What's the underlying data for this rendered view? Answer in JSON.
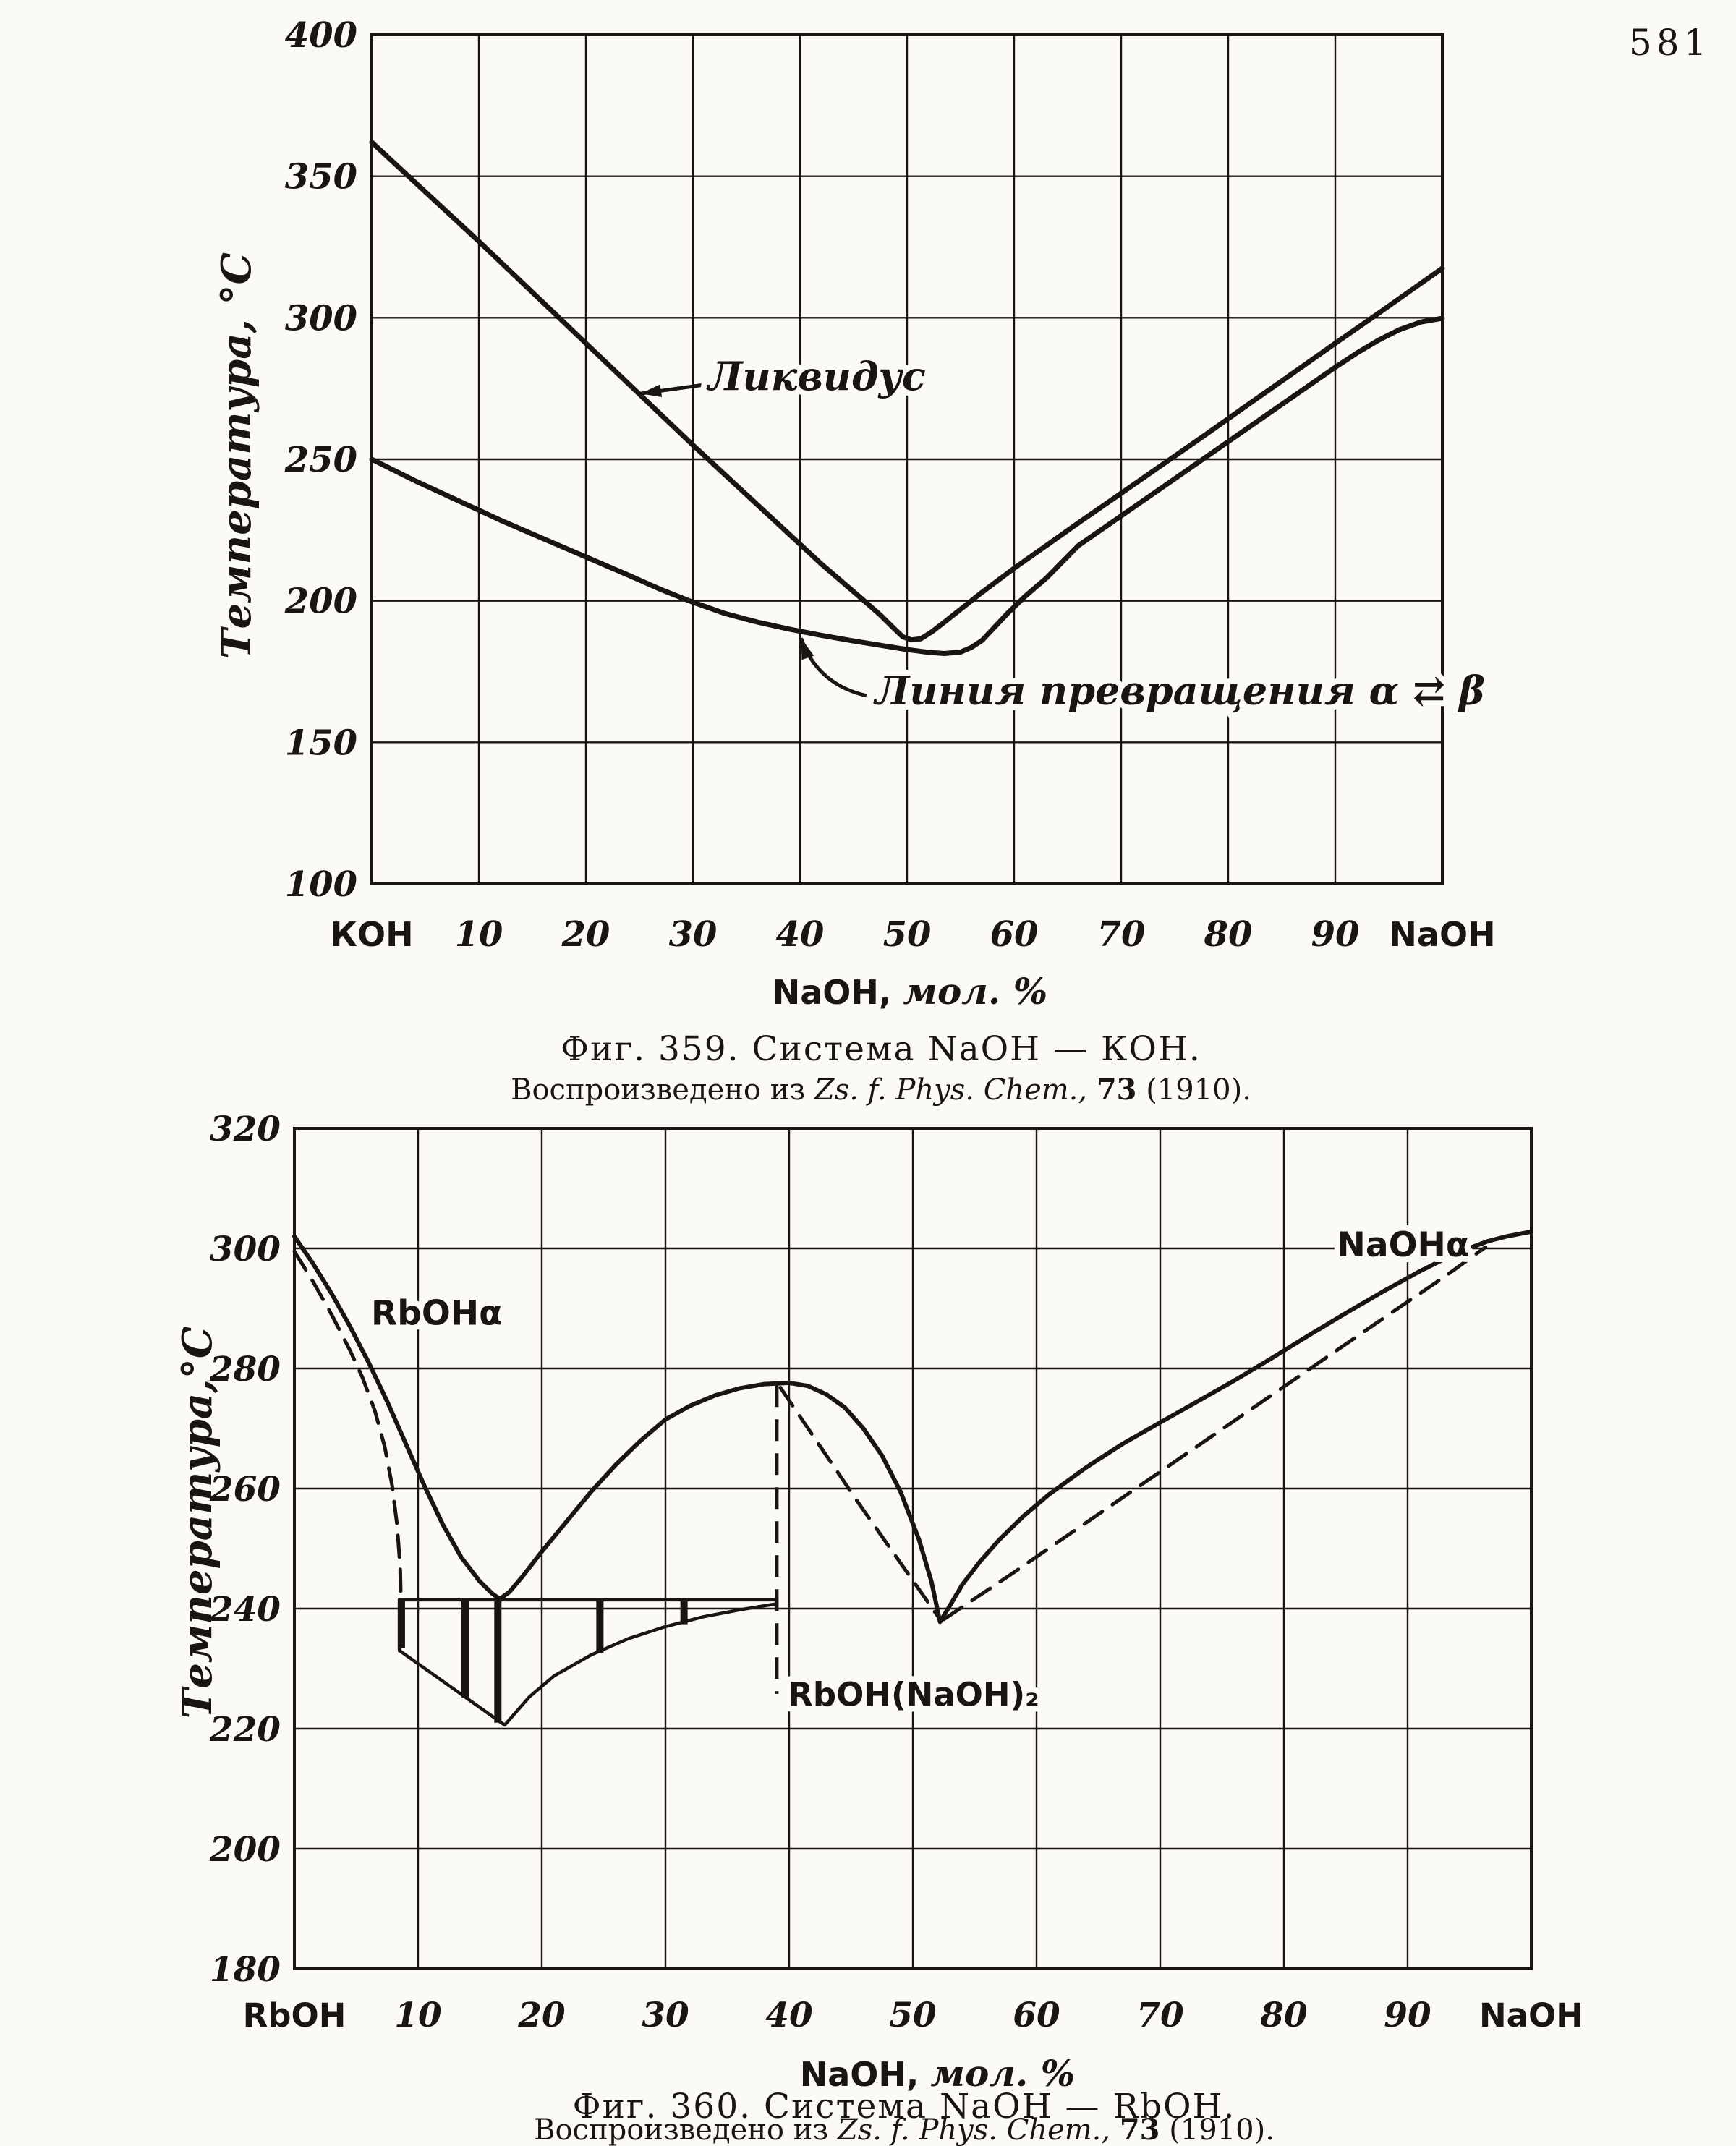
{
  "page": {
    "number": "581"
  },
  "ink_color": "#181512",
  "paper_color": "#fbfaf6",
  "chart_data": [
    {
      "id": "fig359",
      "type": "line",
      "title": "Фиг. 359. Система NaOH — КОН.",
      "source_segments": [
        {
          "text": "Воспроизведено из ",
          "style": "plain"
        },
        {
          "text": "Zs. f. Phys. Chem.,",
          "style": "italic"
        },
        {
          "text": " ",
          "style": "plain"
        },
        {
          "text": "73",
          "style": "bold"
        },
        {
          "text": " (1910).",
          "style": "plain"
        }
      ],
      "xlabel": "NaOH, мол. %",
      "ylabel": "Температура, °С",
      "xlim": [
        0,
        100
      ],
      "ylim": [
        100,
        400
      ],
      "grid": true,
      "legend_position": "none",
      "x_ticks": [
        {
          "pos": 0,
          "label": "КОН"
        },
        {
          "pos": 10,
          "label": "10"
        },
        {
          "pos": 20,
          "label": "20"
        },
        {
          "pos": 30,
          "label": "30"
        },
        {
          "pos": 40,
          "label": "40"
        },
        {
          "pos": 50,
          "label": "50"
        },
        {
          "pos": 60,
          "label": "60"
        },
        {
          "pos": 70,
          "label": "70"
        },
        {
          "pos": 80,
          "label": "80"
        },
        {
          "pos": 90,
          "label": "90"
        },
        {
          "pos": 100,
          "label": "NaOH"
        }
      ],
      "y_ticks": [
        100,
        150,
        200,
        250,
        300,
        350,
        400
      ],
      "series": [
        {
          "name": "liquidus",
          "label": "Ликвидус",
          "line": "solid",
          "width": 7,
          "points": [
            [
              0,
              362
            ],
            [
              5,
              344.5
            ],
            [
              10,
              327
            ],
            [
              15,
              309
            ],
            [
              20,
              291
            ],
            [
              25,
              273
            ],
            [
              30,
              255
            ],
            [
              33,
              244.5
            ],
            [
              36,
              234
            ],
            [
              39,
              223.5
            ],
            [
              42,
              213
            ],
            [
              44,
              206.5
            ],
            [
              46,
              200
            ],
            [
              47.5,
              195
            ],
            [
              48.7,
              190.5
            ],
            [
              49.6,
              187.3
            ],
            [
              50.4,
              186.2
            ],
            [
              51.3,
              186.6
            ],
            [
              52.3,
              189
            ],
            [
              53.5,
              192.5
            ],
            [
              55,
              197
            ],
            [
              57,
              203
            ],
            [
              60,
              211.5
            ],
            [
              63,
              219.5
            ],
            [
              66,
              227.5
            ],
            [
              70,
              238
            ],
            [
              74,
              248.5
            ],
            [
              78,
              259
            ],
            [
              82,
              269.7
            ],
            [
              86,
              280.3
            ],
            [
              90,
              291
            ],
            [
              94,
              301.5
            ],
            [
              97,
              309.5
            ],
            [
              100,
              317.5
            ]
          ]
        },
        {
          "name": "transformation-line",
          "label": "Линия превращения α ⇄ β",
          "line": "solid",
          "width": 7,
          "points": [
            [
              0,
              250
            ],
            [
              4,
              242.5
            ],
            [
              8,
              235.5
            ],
            [
              12,
              228.5
            ],
            [
              16,
              222
            ],
            [
              20,
              215.5
            ],
            [
              24,
              209
            ],
            [
              27,
              204
            ],
            [
              30,
              199.5
            ],
            [
              33,
              195.5
            ],
            [
              36,
              192.5
            ],
            [
              39,
              190
            ],
            [
              42,
              187.8
            ],
            [
              45,
              185.8
            ],
            [
              48,
              184
            ],
            [
              50,
              182.8
            ],
            [
              52,
              181.8
            ],
            [
              53.5,
              181.4
            ],
            [
              55,
              181.9
            ],
            [
              56,
              183.5
            ],
            [
              57,
              186
            ],
            [
              58,
              190
            ],
            [
              59.5,
              196
            ],
            [
              61,
              201.5
            ],
            [
              63,
              208
            ],
            [
              66,
              219.5
            ],
            [
              70,
              230
            ],
            [
              74,
              240.5
            ],
            [
              78,
              251
            ],
            [
              82,
              261.5
            ],
            [
              86,
              272
            ],
            [
              90,
              282.5
            ],
            [
              92,
              287.5
            ],
            [
              94,
              292
            ],
            [
              96,
              295.8
            ],
            [
              98,
              298.5
            ],
            [
              100,
              299.8
            ]
          ]
        }
      ],
      "annotations": [
        {
          "name": "liquidus-label",
          "text": "Ликвидус",
          "kind": "cursive",
          "size": 54,
          "x": 31.4,
          "y": 274.5,
          "anchor": "start",
          "arrow": [
            [
              30.8,
              276.2
            ],
            [
              25.1,
              273.2
            ]
          ]
        },
        {
          "name": "transformation-label",
          "text": "Линия превращения α ⇄ β",
          "kind": "cursive",
          "size": 54,
          "x": 47.0,
          "y": 163.5,
          "anchor": "start",
          "arrow": [
            [
              46.2,
              166.5
            ],
            [
              41.6,
              170.5
            ],
            [
              40.1,
              186.8
            ]
          ]
        }
      ]
    },
    {
      "id": "fig360",
      "type": "line",
      "title": "Фиг. 360. Система NaOH — RbOH.",
      "source_segments": [
        {
          "text": "Воспроизведено из ",
          "style": "plain"
        },
        {
          "text": "Zs. f. Phys. Chem.,",
          "style": "italic"
        },
        {
          "text": " ",
          "style": "plain"
        },
        {
          "text": "73",
          "style": "bold"
        },
        {
          "text": " (1910).",
          "style": "plain"
        }
      ],
      "xlabel": "NaOH, мол. %",
      "ylabel": "Температура,°С",
      "xlim": [
        0,
        100
      ],
      "ylim": [
        180,
        320
      ],
      "grid": true,
      "legend_position": "none",
      "x_ticks": [
        {
          "pos": 0,
          "label": "RbOH"
        },
        {
          "pos": 10,
          "label": "10"
        },
        {
          "pos": 20,
          "label": "20"
        },
        {
          "pos": 30,
          "label": "30"
        },
        {
          "pos": 40,
          "label": "40"
        },
        {
          "pos": 50,
          "label": "50"
        },
        {
          "pos": 60,
          "label": "60"
        },
        {
          "pos": 70,
          "label": "70"
        },
        {
          "pos": 80,
          "label": "80"
        },
        {
          "pos": 90,
          "label": "90"
        },
        {
          "pos": 100,
          "label": "NaOH"
        }
      ],
      "y_ticks": [
        180,
        200,
        220,
        240,
        260,
        280,
        300,
        320
      ],
      "series": [
        {
          "name": "liquidus",
          "line": "solid",
          "width": 6,
          "points": [
            [
              0,
              302
            ],
            [
              1.5,
              297.5
            ],
            [
              3,
              292.5
            ],
            [
              4.5,
              287
            ],
            [
              6,
              281
            ],
            [
              7.5,
              274.5
            ],
            [
              9,
              267.5
            ],
            [
              10.5,
              260.5
            ],
            [
              12,
              254
            ],
            [
              13.5,
              248.5
            ],
            [
              15,
              244.5
            ],
            [
              16,
              242.5
            ],
            [
              16.6,
              241.6
            ],
            [
              17.4,
              242.8
            ],
            [
              18.5,
              245.5
            ],
            [
              20,
              249.5
            ],
            [
              22,
              254.5
            ],
            [
              24,
              259.5
            ],
            [
              26,
              264
            ],
            [
              28,
              268
            ],
            [
              30,
              271.5
            ],
            [
              32,
              273.8
            ],
            [
              34,
              275.5
            ],
            [
              36,
              276.7
            ],
            [
              38,
              277.4
            ],
            [
              40,
              277.6
            ],
            [
              41.5,
              277.1
            ],
            [
              43,
              275.7
            ],
            [
              44.5,
              273.5
            ],
            [
              46,
              270
            ],
            [
              47.5,
              265.5
            ],
            [
              49,
              259.5
            ],
            [
              50.5,
              251.5
            ],
            [
              51.5,
              244.5
            ],
            [
              52.2,
              237.8
            ],
            [
              53,
              240.5
            ],
            [
              54,
              244
            ],
            [
              55.5,
              248
            ],
            [
              57,
              251.5
            ],
            [
              59,
              255.5
            ],
            [
              61,
              259
            ],
            [
              64,
              263.5
            ],
            [
              67,
              267.5
            ],
            [
              70,
              271
            ],
            [
              73,
              274.5
            ],
            [
              76,
              278
            ],
            [
              79,
              281.7
            ],
            [
              82,
              285.5
            ],
            [
              85,
              289.2
            ],
            [
              88,
              292.8
            ],
            [
              91,
              296.2
            ],
            [
              94,
              299.3
            ],
            [
              96.5,
              301.2
            ],
            [
              98,
              302
            ],
            [
              100,
              302.8
            ]
          ]
        },
        {
          "name": "rboh-alpha-boundary",
          "line": "dashed",
          "width": 5,
          "points": [
            [
              0,
              299.5
            ],
            [
              1.5,
              294.5
            ],
            [
              3,
              289
            ],
            [
              4.5,
              283
            ],
            [
              5.5,
              278.5
            ],
            [
              6.5,
              273
            ],
            [
              7.3,
              267
            ],
            [
              7.9,
              260.5
            ],
            [
              8.3,
              254
            ],
            [
              8.55,
              247
            ],
            [
              8.6,
              242.2
            ]
          ]
        },
        {
          "name": "peak-to-eutectic-dashed",
          "line": "dashed",
          "width": 5,
          "points": [
            [
              39.3,
              276.8
            ],
            [
              45.7,
              257.3
            ],
            [
              52.2,
              238.2
            ]
          ]
        },
        {
          "name": "solidus-right-dashed",
          "line": "dashed",
          "width": 5,
          "points": [
            [
              52.5,
              238.2
            ],
            [
              58,
              245.8
            ],
            [
              64,
              254.3
            ],
            [
              70,
              262.8
            ],
            [
              76,
              271.3
            ],
            [
              82,
              279.8
            ],
            [
              88,
              288.3
            ],
            [
              93,
              295.3
            ],
            [
              96.3,
              300.2
            ]
          ]
        },
        {
          "name": "eutectic-horizontal-line",
          "line": "solid",
          "width": 5,
          "points": [
            [
              8.5,
              241.5
            ],
            [
              39,
              241.5
            ]
          ]
        },
        {
          "name": "two-phase-left-edge",
          "line": "solid",
          "width": 5,
          "points": [
            [
              8.5,
              241.5
            ],
            [
              8.5,
              233
            ]
          ]
        },
        {
          "name": "two-phase-lower-left",
          "line": "solid",
          "width": 4.5,
          "points": [
            [
              8.5,
              233
            ],
            [
              17,
              220.6
            ]
          ]
        },
        {
          "name": "two-phase-lower-right",
          "line": "solid",
          "width": 4.5,
          "points": [
            [
              17,
              220.6
            ],
            [
              19,
              225.3
            ],
            [
              21,
              228.8
            ],
            [
              24,
              232.3
            ],
            [
              27,
              235
            ],
            [
              30,
              237
            ],
            [
              33,
              238.6
            ],
            [
              36,
              239.8
            ],
            [
              39,
              240.8
            ]
          ]
        }
      ],
      "hatch_bars": [
        {
          "x": 8.65,
          "y1": 241.5,
          "y2": 233.4
        },
        {
          "x": 13.8,
          "y1": 241.5,
          "y2": 225.2
        },
        {
          "x": 16.45,
          "y1": 241.5,
          "y2": 221.0
        },
        {
          "x": 24.7,
          "y1": 241.5,
          "y2": 232.6
        },
        {
          "x": 31.5,
          "y1": 241.5,
          "y2": 237.4
        }
      ],
      "compound_line": {
        "name": "rboh-naoh2-composition-line",
        "x": 39,
        "y1": 277.2,
        "y2": 225.8,
        "line": "dashed",
        "width": 5
      },
      "annotations": [
        {
          "name": "rboh-alpha-label",
          "text": "RbOHα",
          "kind": "plain",
          "size": 47,
          "x": 6.2,
          "y": 287.3,
          "anchor": "start"
        },
        {
          "name": "naoh-alpha-label",
          "text": "NaOHα",
          "kind": "plain",
          "size": 47,
          "x": 84.3,
          "y": 298.7,
          "anchor": "start"
        },
        {
          "name": "compound-label",
          "text": "RbOH(NaOH)₂",
          "kind": "plain",
          "size": 45,
          "x": 39.9,
          "y": 223.8,
          "anchor": "start"
        }
      ]
    }
  ]
}
